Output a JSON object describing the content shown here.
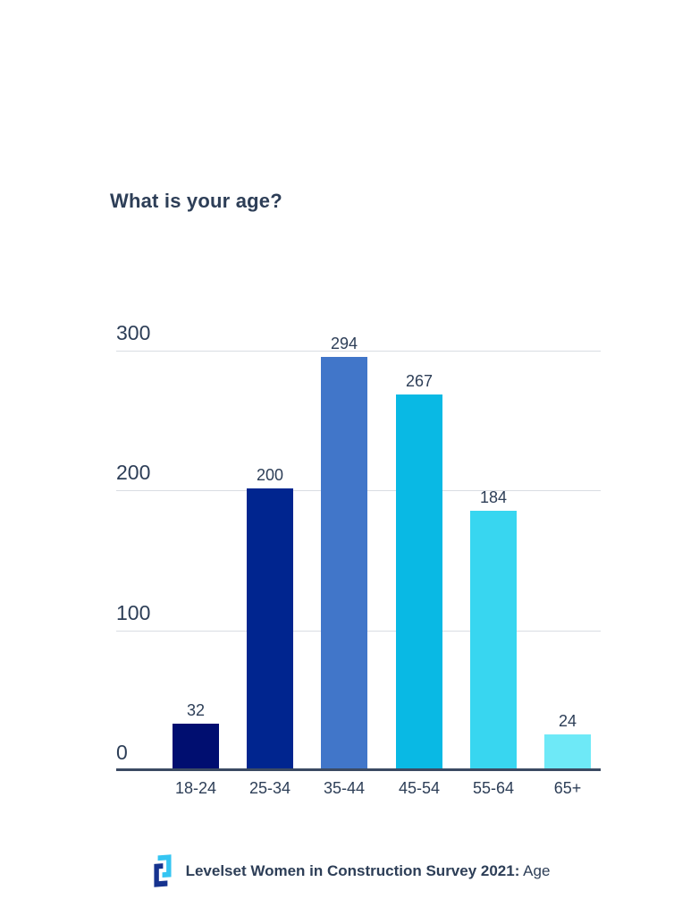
{
  "title": "What is your age?",
  "chart_data": {
    "type": "bar",
    "title": "What is your age?",
    "categories": [
      "18-24",
      "25-34",
      "35-44",
      "45-54",
      "55-64",
      "65+"
    ],
    "values": [
      32,
      200,
      294,
      267,
      184,
      24
    ],
    "bar_colors": [
      "#000e70",
      "#00258f",
      "#4176c9",
      "#09b9e4",
      "#38d6f0",
      "#6ee9f7"
    ],
    "xlabel": "",
    "ylabel": "",
    "ylim": [
      0,
      300
    ],
    "yticks": [
      0,
      100,
      200,
      300
    ],
    "grid": "horizontal-gridlines-at-100-200-300",
    "legend": "none",
    "value_labels": true
  },
  "colors": {
    "text": "#2d3e57",
    "gridline": "#d9dde3",
    "axis_line": "#3b4a63",
    "background": "#ffffff",
    "logo_light_blue": "#35c5f2",
    "logo_dark_blue": "#16338f"
  },
  "footer": {
    "source_bold": "Levelset Women in Construction Survey 2021:",
    "source_regular": "Age",
    "logo": "levelset-logo"
  }
}
